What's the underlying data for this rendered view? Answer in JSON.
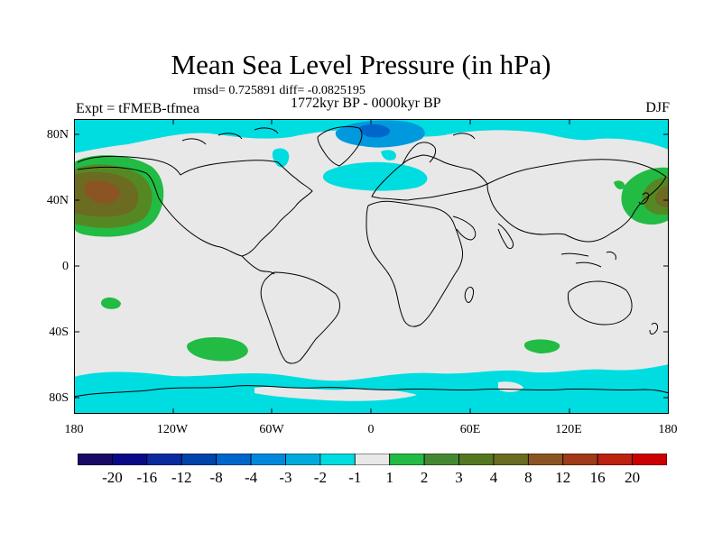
{
  "header": {
    "title": "Mean Sea Level Pressure (in hPa)",
    "stats": "rmsd= 0.725891 diff= -0.0825195",
    "experiment": "Expt = tFMEB-tfmea",
    "period": "1772kyr BP - 0000kyr BP",
    "season": "DJF"
  },
  "map": {
    "lat_ticks": [
      "80N",
      "40N",
      "0",
      "40S",
      "80S"
    ],
    "lon_ticks": [
      "180",
      "120W",
      "60W",
      "0",
      "60E",
      "120E",
      "180"
    ],
    "colors": {
      "background": "#e8e8e8",
      "cyan": "#00dde0",
      "blue_light": "#0099dd",
      "blue_mid": "#0066cc",
      "green": "#22bb44",
      "green_dark": "#558822",
      "olive": "#6b6b22",
      "brown": "#8a5522"
    }
  },
  "colorbar": {
    "labels": [
      "-20",
      "-16",
      "-12",
      "-8",
      "-4",
      "-3",
      "-2",
      "-1",
      "1",
      "2",
      "3",
      "4",
      "8",
      "12",
      "16",
      "20"
    ],
    "colors": [
      "#1a0a66",
      "#0a0a88",
      "#0a2aa0",
      "#0044aa",
      "#0066cc",
      "#0088dd",
      "#00aadd",
      "#00dde0",
      "#e8e8e8",
      "#22bb44",
      "#448833",
      "#557722",
      "#6b6b22",
      "#8a5522",
      "#a03a18",
      "#bb2210",
      "#cc0000"
    ]
  }
}
